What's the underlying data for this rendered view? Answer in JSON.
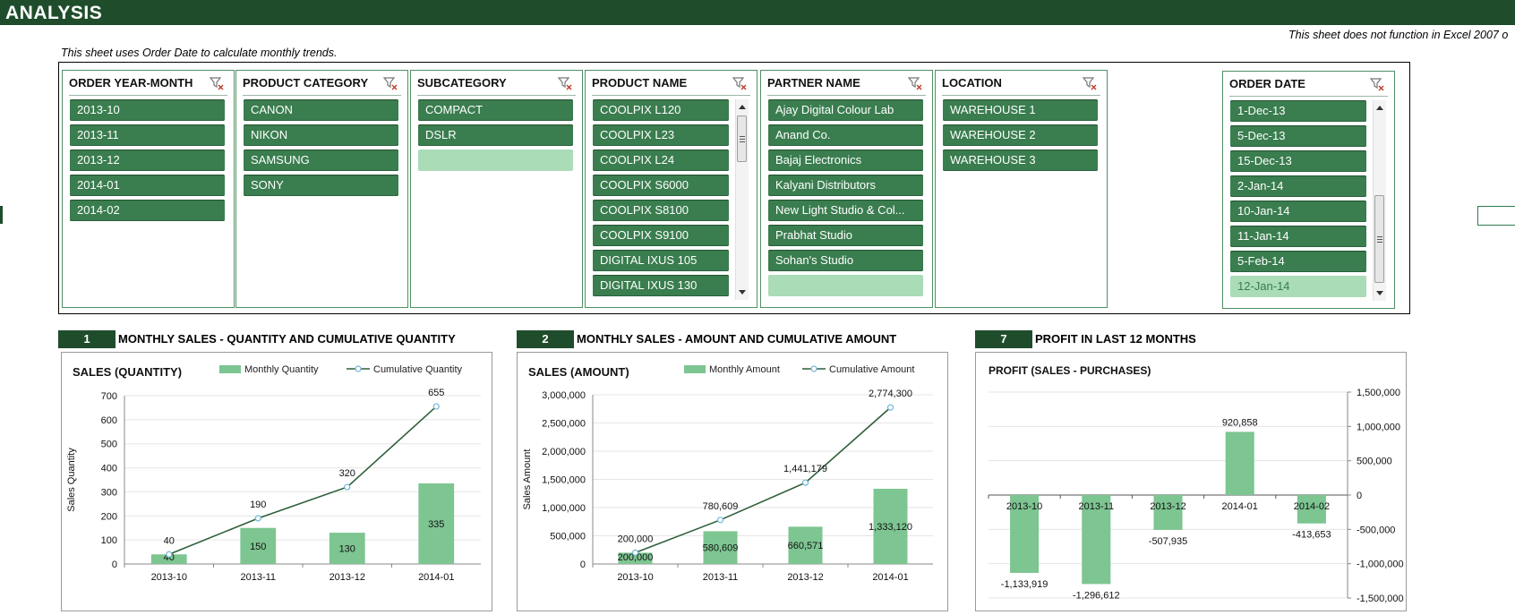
{
  "page": {
    "title": "ANALYSIS",
    "note_left": "This sheet uses Order Date to calculate monthly trends.",
    "note_right": "This sheet does not function in Excel 2007 o"
  },
  "colors": {
    "header_bg": "#1f4d2c",
    "slicer_selected": "#3a7d4f",
    "slicer_unselected": "#a9dcb7",
    "bar": "#7dc591",
    "line": "#2e5e3a",
    "marker": "#6fb6d8"
  },
  "slicers": [
    {
      "id": "order-year-month",
      "title": "ORDER YEAR-MONTH",
      "items": [
        {
          "label": "2013-10",
          "selected": true
        },
        {
          "label": "2013-11",
          "selected": true
        },
        {
          "label": "2013-12",
          "selected": true
        },
        {
          "label": "2014-01",
          "selected": true
        },
        {
          "label": "2014-02",
          "selected": true
        }
      ]
    },
    {
      "id": "product-category",
      "title": "PRODUCT CATEGORY",
      "items": [
        {
          "label": "CANON",
          "selected": true
        },
        {
          "label": "NIKON",
          "selected": true
        },
        {
          "label": "SAMSUNG",
          "selected": true
        },
        {
          "label": "SONY",
          "selected": true
        }
      ]
    },
    {
      "id": "subcategory",
      "title": "SUBCATEGORY",
      "items": [
        {
          "label": "COMPACT",
          "selected": true
        },
        {
          "label": "DSLR",
          "selected": true
        },
        {
          "label": "",
          "selected": false
        }
      ]
    },
    {
      "id": "product-name",
      "title": "PRODUCT NAME",
      "items": [
        {
          "label": "COOLPIX L120",
          "selected": true
        },
        {
          "label": "COOLPIX L23",
          "selected": true
        },
        {
          "label": "COOLPIX L24",
          "selected": true
        },
        {
          "label": "COOLPIX S6000",
          "selected": true
        },
        {
          "label": "COOLPIX S8100",
          "selected": true
        },
        {
          "label": "COOLPIX S9100",
          "selected": true
        },
        {
          "label": "DIGITAL IXUS 105",
          "selected": true
        },
        {
          "label": "DIGITAL IXUS 130",
          "selected": true
        }
      ]
    },
    {
      "id": "partner-name",
      "title": "PARTNER NAME",
      "items": [
        {
          "label": "Ajay Digital Colour Lab",
          "selected": true
        },
        {
          "label": "Anand Co.",
          "selected": true
        },
        {
          "label": "Bajaj Electronics",
          "selected": true
        },
        {
          "label": "Kalyani Distributors",
          "selected": true
        },
        {
          "label": "New Light Studio & Col...",
          "selected": true
        },
        {
          "label": "Prabhat Studio",
          "selected": true
        },
        {
          "label": "Sohan's Studio",
          "selected": true
        },
        {
          "label": "",
          "selected": false
        }
      ]
    },
    {
      "id": "location",
      "title": "LOCATION",
      "items": [
        {
          "label": "WAREHOUSE 1",
          "selected": true
        },
        {
          "label": "WAREHOUSE 2",
          "selected": true
        },
        {
          "label": "WAREHOUSE 3",
          "selected": true
        }
      ]
    },
    {
      "id": "order-date",
      "title": "ORDER DATE",
      "items": [
        {
          "label": "1-Dec-13",
          "selected": true
        },
        {
          "label": "5-Dec-13",
          "selected": true
        },
        {
          "label": "15-Dec-13",
          "selected": true
        },
        {
          "label": "2-Jan-14",
          "selected": true
        },
        {
          "label": "10-Jan-14",
          "selected": true
        },
        {
          "label": "11-Jan-14",
          "selected": true
        },
        {
          "label": "5-Feb-14",
          "selected": true
        },
        {
          "label": "12-Jan-14",
          "selected": false
        }
      ]
    }
  ],
  "sections": [
    {
      "number": "1",
      "title": "MONTHLY SALES - QUANTITY AND CUMULATIVE QUANTITY"
    },
    {
      "number": "2",
      "title": "MONTHLY SALES - AMOUNT AND CUMULATIVE AMOUNT"
    },
    {
      "number": "7",
      "title": "PROFIT IN LAST 12 MONTHS"
    }
  ],
  "chart_data": [
    {
      "type": "bar",
      "title": "SALES (QUANTITY)",
      "ylabel": "Sales Quantity",
      "xlabel": "",
      "categories": [
        "2013-10",
        "2013-11",
        "2013-12",
        "2014-01"
      ],
      "ylim": [
        0,
        700
      ],
      "yticks": [
        "0",
        "100",
        "200",
        "300",
        "400",
        "500",
        "600",
        "700"
      ],
      "series": [
        {
          "name": "Monthly Quantity",
          "kind": "bar",
          "values": [
            40,
            150,
            130,
            335
          ],
          "labels": [
            "40",
            "150",
            "130",
            "335"
          ]
        },
        {
          "name": "Cumulative Quantity",
          "kind": "line",
          "values": [
            40,
            190,
            320,
            655
          ],
          "labels": [
            "40",
            "190",
            "320",
            "655"
          ]
        }
      ],
      "legend": "top-right",
      "grid": true
    },
    {
      "type": "bar",
      "title": "SALES (AMOUNT)",
      "ylabel": "Sales Amount",
      "xlabel": "",
      "categories": [
        "2013-10",
        "2013-11",
        "2013-12",
        "2014-01"
      ],
      "ylim": [
        0,
        3000000
      ],
      "yticks": [
        "0",
        "500,000",
        "1,000,000",
        "1,500,000",
        "2,000,000",
        "2,500,000",
        "3,000,000"
      ],
      "series": [
        {
          "name": "Monthly Amount",
          "kind": "bar",
          "values": [
            200000,
            580609,
            660571,
            1333120
          ],
          "labels": [
            "200,000",
            "580,609",
            "660,571",
            "1,333,120"
          ]
        },
        {
          "name": "Cumulative Amount",
          "kind": "line",
          "values": [
            200000,
            780609,
            1441179,
            2774300
          ],
          "labels": [
            "200,000",
            "780,609",
            "1,441,179",
            "2,774,300"
          ]
        }
      ],
      "legend": "top-right",
      "grid": true
    },
    {
      "type": "bar",
      "title": "PROFIT (SALES - PURCHASES)",
      "ylabel": "",
      "xlabel": "",
      "categories": [
        "2013-10",
        "2013-11",
        "2013-12",
        "2014-01",
        "2014-02"
      ],
      "ylim": [
        -1500000,
        1500000
      ],
      "yticks": [
        "-1,500,000",
        "-1,000,000",
        "-500,000",
        "0",
        "500,000",
        "1,000,000",
        "1,500,000"
      ],
      "series": [
        {
          "kind": "bar",
          "values": [
            -1133919,
            -1296612,
            -507935,
            920858,
            -413653
          ],
          "labels": [
            "-1,133,919",
            "-1,296,612",
            "-507,935",
            "920,858",
            "-413,653"
          ]
        }
      ],
      "legend": "none",
      "grid": true,
      "axis_side": "right"
    }
  ]
}
